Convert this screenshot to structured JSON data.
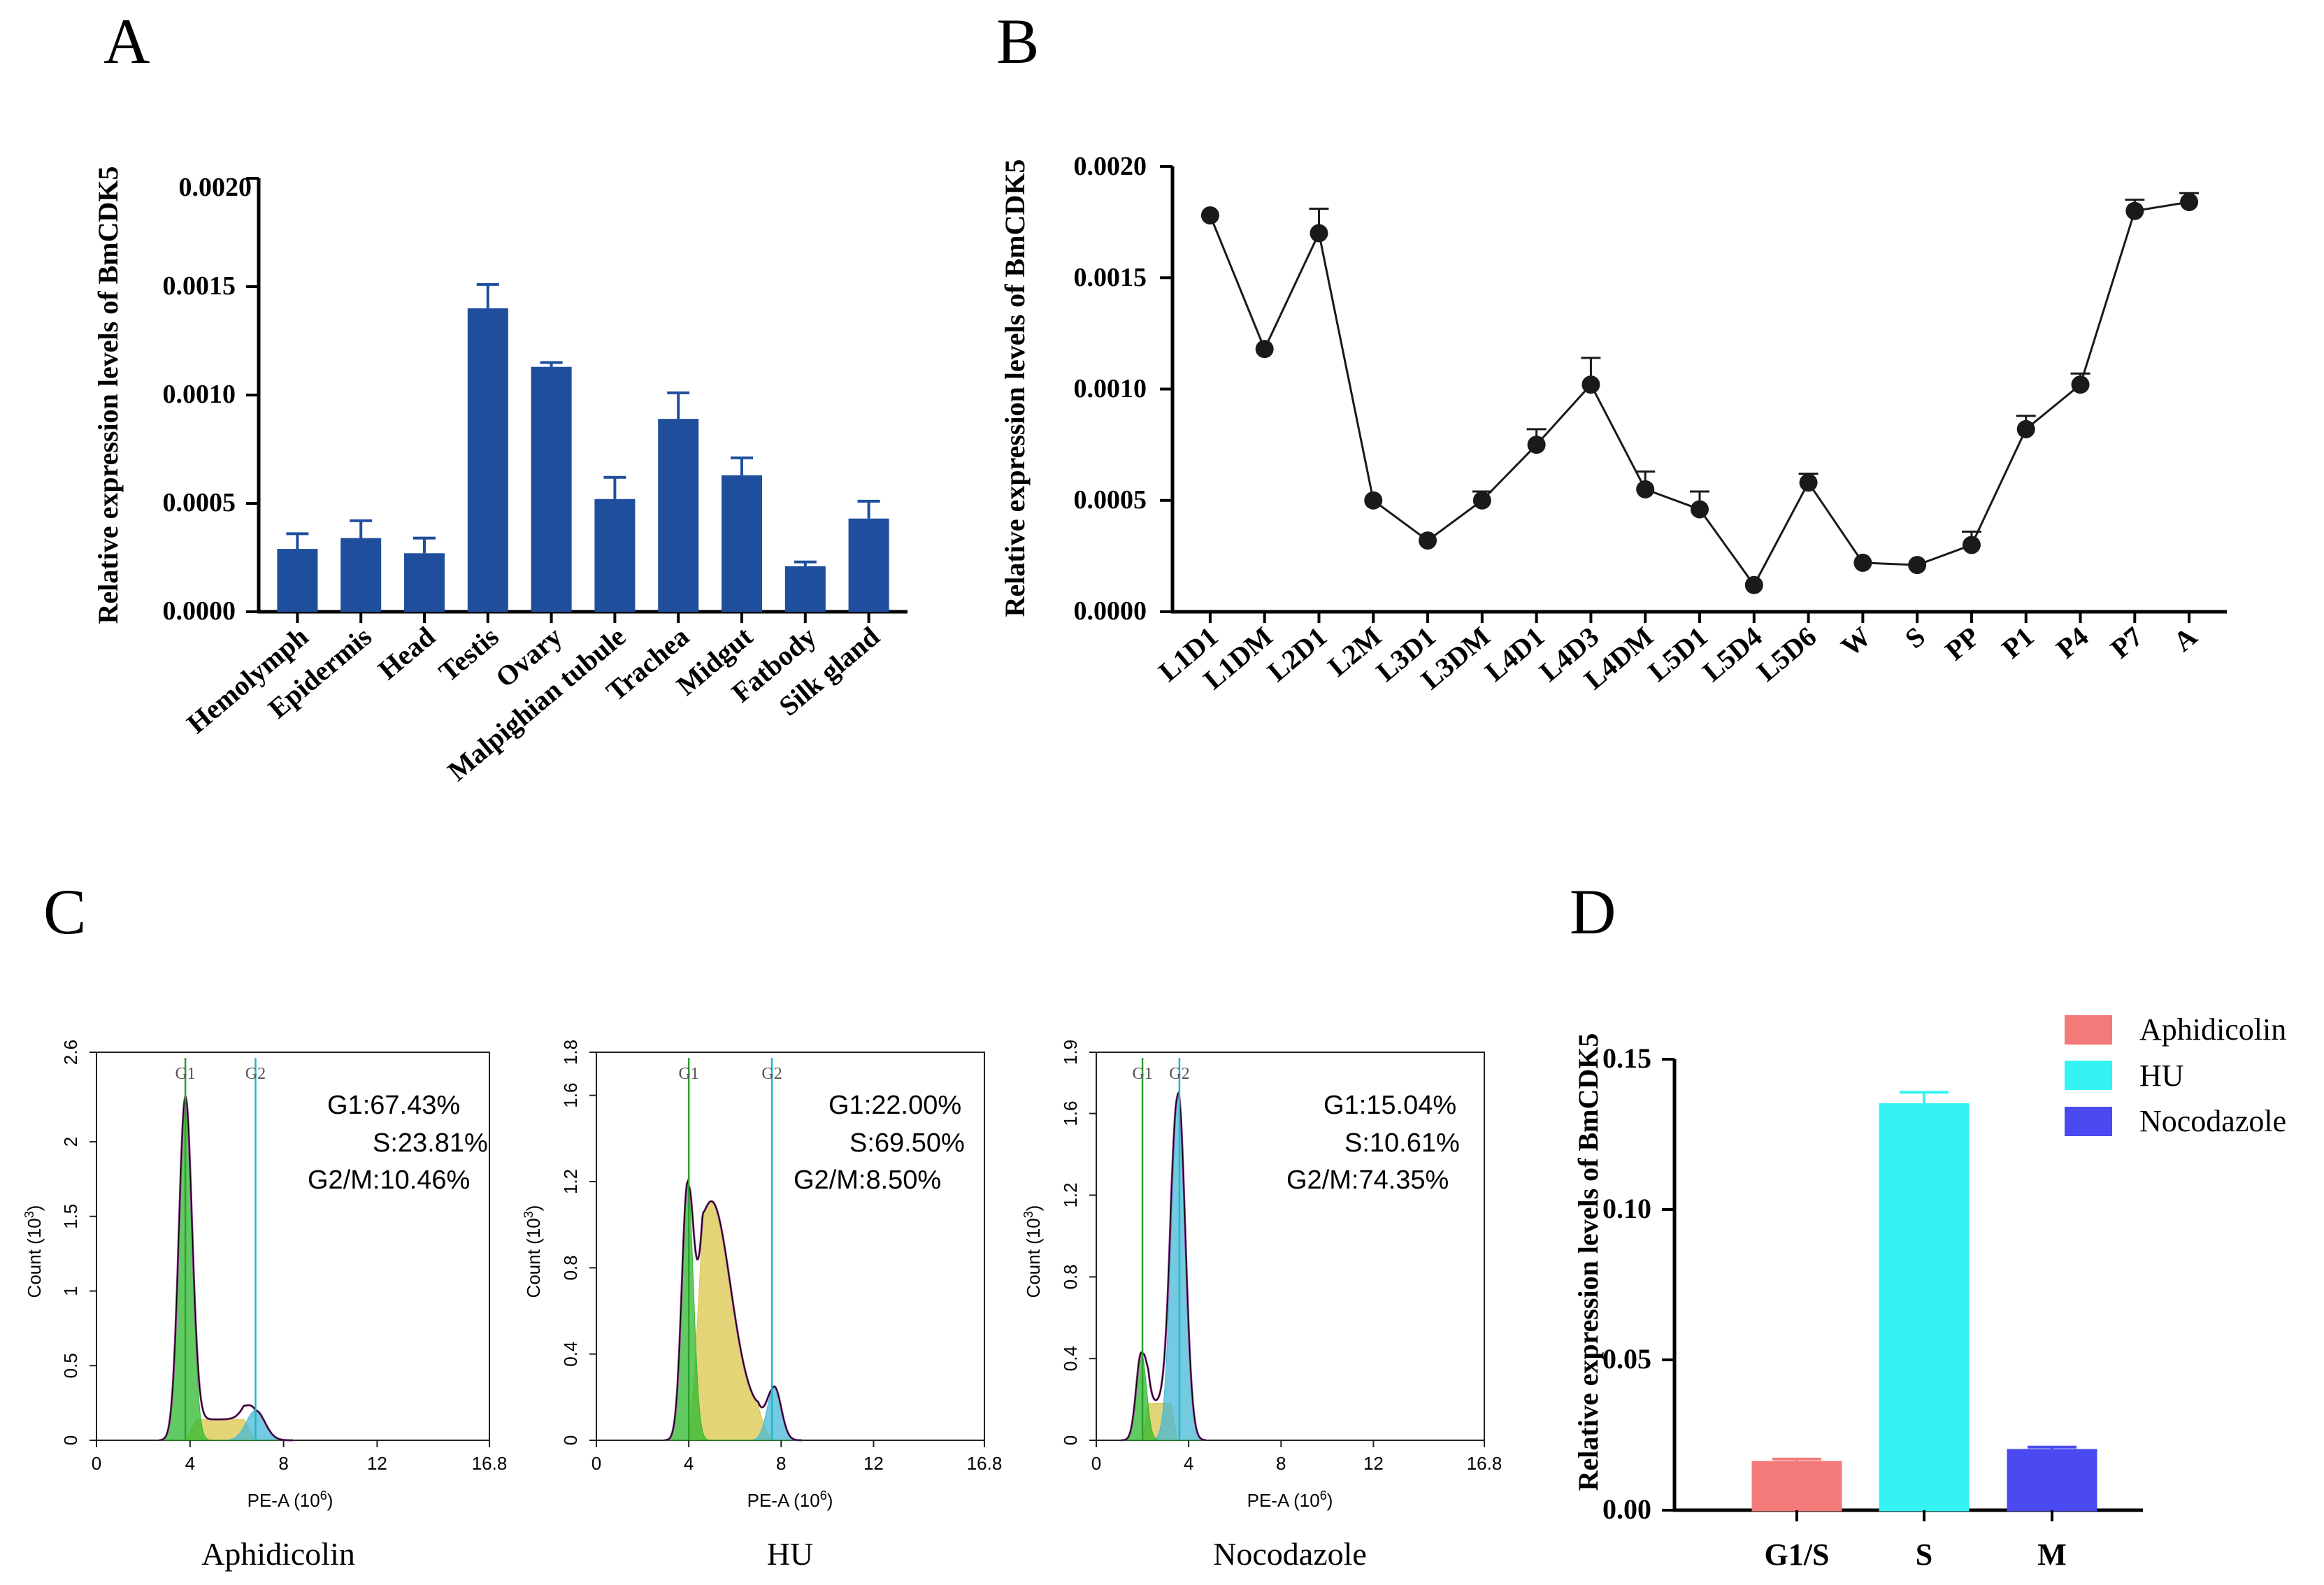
{
  "panels": {
    "a": "A",
    "b": "B",
    "c": "C",
    "d": "D"
  },
  "colors": {
    "bar_a": "#1f4e9c",
    "line_b": "#1a1a1a",
    "aphidicolin": "#f47a7a",
    "hu": "#33f3f3",
    "nocodazole": "#4a4af0",
    "flow_g1": "#2eb82e",
    "flow_s": "#d9c64a",
    "flow_g2": "#45b8d6",
    "flow_fit": "#8a2f8a",
    "flow_marker_g1": "#2ca02c",
    "flow_marker_g2": "#20b8c8"
  },
  "chart_data": [
    {
      "id": "A",
      "type": "bar",
      "ylabel": "Relative expression levels of BmCDK5",
      "ylim": [
        0,
        0.002
      ],
      "yticks": [
        "0.0000",
        "0.0005",
        "0.0010",
        "0.0015",
        "0.0020"
      ],
      "categories": [
        "Hemolymph",
        "Epidermis",
        "Head",
        "Testis",
        "Ovary",
        "Malpighian tubule",
        "Trachea",
        "Midgut",
        "Fatbody",
        "Silk gland"
      ],
      "values": [
        0.00029,
        0.00034,
        0.00027,
        0.0014,
        0.00113,
        0.00052,
        0.00089,
        0.00063,
        0.00021,
        0.00043
      ],
      "errors": [
        7e-05,
        8e-05,
        7e-05,
        0.00011,
        2e-05,
        0.0001,
        0.00012,
        8e-05,
        2e-05,
        8e-05
      ]
    },
    {
      "id": "B",
      "type": "line",
      "ylabel": "Relative expression levels of BmCDK5",
      "ylim": [
        0,
        0.002
      ],
      "yticks": [
        "0.0000",
        "0.0005",
        "0.0010",
        "0.0015",
        "0.0020"
      ],
      "categories": [
        "L1D1",
        "L1DM",
        "L2D1",
        "L2M",
        "L3D1",
        "L3DM",
        "L4D1",
        "L4D3",
        "L4DM",
        "L5D1",
        "L5D4",
        "L5D6",
        "W",
        "S",
        "PP",
        "P1",
        "P4",
        "P7",
        "A"
      ],
      "values": [
        0.00178,
        0.00118,
        0.0017,
        0.0005,
        0.00032,
        0.0005,
        0.00075,
        0.00102,
        0.00055,
        0.00046,
        0.00012,
        0.00058,
        0.00022,
        0.00021,
        0.0003,
        0.00082,
        0.00102,
        0.0018,
        0.00184
      ],
      "errors": [
        0,
        0,
        0.00011,
        0,
        0,
        4e-05,
        7e-05,
        0.00012,
        8e-05,
        8e-05,
        0,
        4e-05,
        0,
        0,
        6e-05,
        6e-05,
        5e-05,
        5e-05,
        4e-05
      ]
    },
    {
      "id": "C1",
      "type": "area",
      "title": "Aphidicolin",
      "xlabel": "PE-A",
      "xunit": "(10",
      "xexp": "6",
      "ylabel": "Count",
      "yunit": "(10",
      "yexp": "3",
      "xlim": [
        0,
        16.8
      ],
      "ylim": [
        0,
        2.6
      ],
      "xticks": [
        "0",
        "4",
        "8",
        "12",
        "16.8"
      ],
      "yticks": [
        "0",
        "0.5",
        "1",
        "1.5",
        "2",
        "2.6"
      ],
      "markers": [
        "G1",
        "G2"
      ],
      "marker_x": [
        3.8,
        6.8
      ],
      "stats": [
        "G1:67.43%",
        "S:23.81%",
        "G2/M:10.46%"
      ],
      "g1": {
        "center": 3.8,
        "sigma": 0.28,
        "height": 2.3
      },
      "g2": {
        "center": 6.8,
        "sigma": 0.4,
        "height": 0.2
      },
      "s": {
        "from": 3.8,
        "to": 6.8,
        "level": 0.14
      }
    },
    {
      "id": "C2",
      "type": "area",
      "title": "HU",
      "xlabel": "PE-A",
      "xunit": "(10",
      "xexp": "6",
      "ylabel": "Count",
      "yunit": "(10",
      "yexp": "3",
      "xlim": [
        0,
        16.8
      ],
      "ylim": [
        0,
        1.8
      ],
      "xticks": [
        "0",
        "4",
        "8",
        "12",
        "16.8"
      ],
      "yticks": [
        "0",
        "0.4",
        "0.8",
        "1.2",
        "1.6",
        "1.8"
      ],
      "markers": [
        "G1",
        "G2"
      ],
      "marker_x": [
        4.0,
        7.6
      ],
      "stats": [
        "G1:22.00%",
        "S:69.50%",
        "G2/M:8.50%"
      ],
      "g1": {
        "center": 3.95,
        "sigma": 0.25,
        "height": 1.2
      },
      "g2": {
        "center": 7.7,
        "sigma": 0.3,
        "height": 0.25
      },
      "s": {
        "from": 4.0,
        "to": 7.6,
        "level": 1.0
      }
    },
    {
      "id": "C3",
      "type": "area",
      "title": "Nocodazole",
      "xlabel": "PE-A",
      "xunit": "(10",
      "xexp": "6",
      "ylabel": "Count",
      "yunit": "(10",
      "yexp": "3",
      "xlim": [
        0,
        16.8
      ],
      "ylim": [
        0,
        1.9
      ],
      "xticks": [
        "0",
        "4",
        "8",
        "12",
        "16.8"
      ],
      "yticks": [
        "0",
        "0.4",
        "0.8",
        "1.2",
        "1.6",
        "1.9"
      ],
      "markers": [
        "G1",
        "G2"
      ],
      "marker_x": [
        2.0,
        3.6
      ],
      "stats": [
        "G1:15.04%",
        "S:10.61%",
        "G2/M:74.35%"
      ],
      "g1": {
        "center": 1.95,
        "sigma": 0.22,
        "height": 0.43
      },
      "g2": {
        "center": 3.55,
        "sigma": 0.3,
        "height": 1.7
      },
      "s": {
        "from": 2.0,
        "to": 3.5,
        "level": 0.18
      }
    },
    {
      "id": "D",
      "type": "bar",
      "ylabel": "Relative expression levels of BmCDK5",
      "ylim": [
        0,
        0.15
      ],
      "yticks": [
        "0.00",
        "0.05",
        "0.10",
        "0.15"
      ],
      "categories": [
        "G1/S",
        "S",
        "M"
      ],
      "values": [
        0.016,
        0.135,
        0.02
      ],
      "errors": [
        0.001,
        0.004,
        0.001
      ],
      "legend": [
        "Aphidicolin",
        "HU",
        "Nocodazole"
      ]
    }
  ]
}
